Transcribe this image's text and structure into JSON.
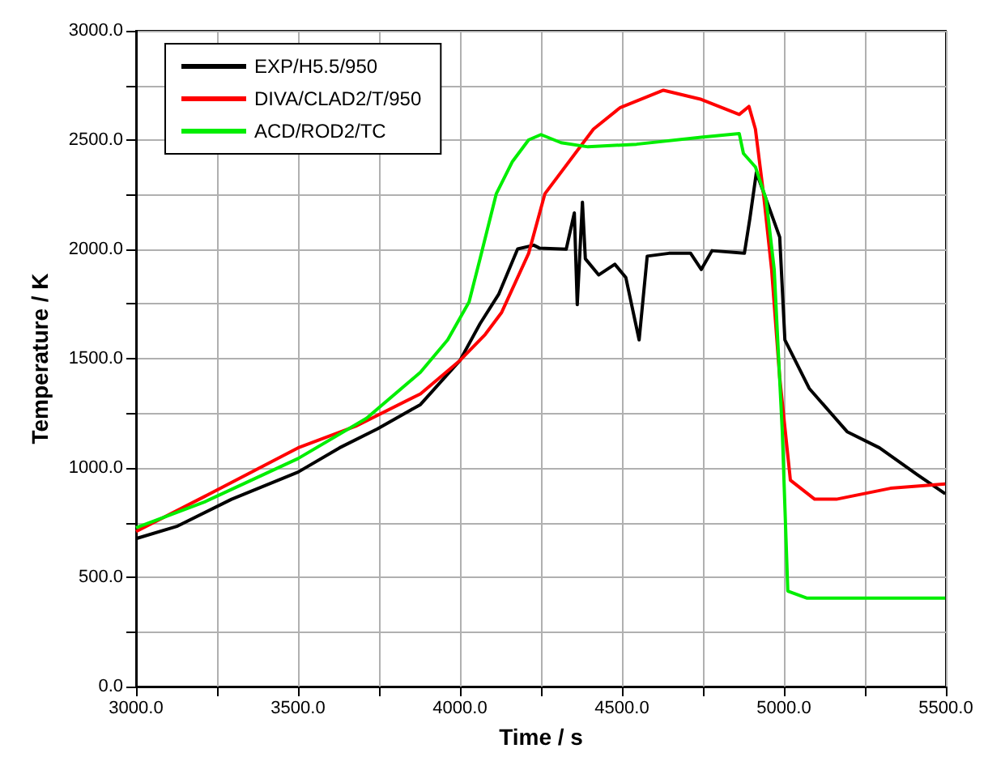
{
  "chart_data": {
    "type": "line",
    "xlabel": "Time / s",
    "ylabel": "Temperature / K",
    "xlim": [
      3000,
      5500
    ],
    "xticks": [
      {
        "value": 3000,
        "label": "3000.0"
      },
      {
        "value": 3250,
        "label": null
      },
      {
        "value": 3500,
        "label": "3500.0"
      },
      {
        "value": 3750,
        "label": null
      },
      {
        "value": 4000,
        "label": "4000.0"
      },
      {
        "value": 4250,
        "label": null
      },
      {
        "value": 4500,
        "label": "4500.0"
      },
      {
        "value": 4750,
        "label": null
      },
      {
        "value": 5000,
        "label": "5000.0"
      },
      {
        "value": 5250,
        "label": null
      },
      {
        "value": 5500,
        "label": "5500.0"
      }
    ],
    "ylim": [
      0,
      3000
    ],
    "yticks": [
      {
        "value": 0,
        "label": "0.0"
      },
      {
        "value": 250,
        "label": null
      },
      {
        "value": 500,
        "label": "500.0"
      },
      {
        "value": 750,
        "label": null
      },
      {
        "value": 1000,
        "label": "1000.0"
      },
      {
        "value": 1250,
        "label": null
      },
      {
        "value": 1500,
        "label": "1500.0"
      },
      {
        "value": 1750,
        "label": null
      },
      {
        "value": 2000,
        "label": "2000.0"
      },
      {
        "value": 2250,
        "label": null
      },
      {
        "value": 2500,
        "label": "2500.0"
      },
      {
        "value": 2750,
        "label": null
      },
      {
        "value": 3000,
        "label": "3000.0"
      }
    ],
    "grid": true,
    "legend": "top left",
    "marker": "none",
    "line_style": "solid",
    "series": [
      {
        "name": "EXP/H5.5/950",
        "color": "#000000",
        "x": [
          3000,
          3128,
          3295,
          3500,
          3628,
          3745,
          3878,
          4000,
          4062,
          4120,
          4178,
          4228,
          4245,
          4328,
          4353,
          4362,
          4378,
          4387,
          4428,
          4478,
          4512,
          4553,
          4578,
          4645,
          4712,
          4745,
          4778,
          4878,
          4895,
          4915,
          4945,
          4987,
          5003,
          5078,
          5195,
          5295,
          5412,
          5498
        ],
        "values": [
          677,
          734,
          857,
          981,
          1092,
          1179,
          1290,
          1492,
          1660,
          1796,
          2002,
          2019,
          2006,
          2001,
          2167,
          1747,
          2216,
          1957,
          1883,
          1932,
          1871,
          1586,
          1969,
          1982,
          1982,
          1908,
          1994,
          1982,
          2142,
          2352,
          2229,
          2056,
          1586,
          1364,
          1166,
          1092,
          969,
          882
        ]
      },
      {
        "name": "DIVA/CLAD2/T/950",
        "color": "#ff0000",
        "x": [
          3000,
          3212,
          3500,
          3678,
          3878,
          4000,
          4078,
          4128,
          4212,
          4262,
          4412,
          4495,
          4628,
          4745,
          4862,
          4892,
          4912,
          4937,
          4962,
          4987,
          5020,
          5095,
          5162,
          5329,
          5498
        ],
        "values": [
          709,
          870,
          1092,
          1191,
          1339,
          1492,
          1611,
          1710,
          1982,
          2254,
          2550,
          2649,
          2728,
          2686,
          2617,
          2654,
          2550,
          2254,
          1908,
          1413,
          944,
          857,
          857,
          907,
          927
        ]
      },
      {
        "name": "ACD/ROD2/TC",
        "color": "#00ee00",
        "x": [
          3000,
          3212,
          3500,
          3712,
          3878,
          3962,
          4028,
          4062,
          4112,
          4162,
          4212,
          4250,
          4312,
          4395,
          4545,
          4745,
          4862,
          4875,
          4912,
          4945,
          4970,
          4995,
          5012,
          5070,
          5498
        ],
        "values": [
          726,
          845,
          1043,
          1228,
          1438,
          1586,
          1759,
          1957,
          2254,
          2402,
          2501,
          2525,
          2488,
          2469,
          2481,
          2513,
          2530,
          2439,
          2377,
          2229,
          1908,
          1166,
          437,
          405,
          405
        ]
      }
    ]
  }
}
